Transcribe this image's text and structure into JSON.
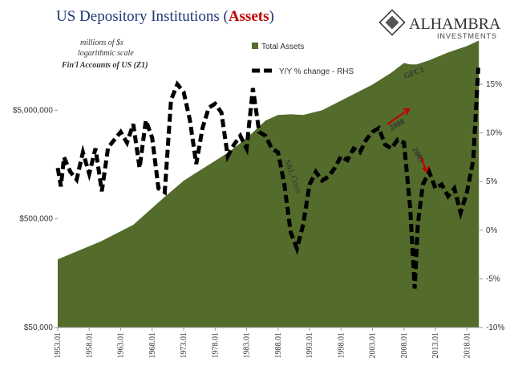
{
  "chart_data": {
    "type": "area-line",
    "title_parts": [
      "US Depository Institutions (",
      "Assets",
      ")"
    ],
    "title_colors": [
      "#1f3676",
      "#c00000",
      "#1f3676"
    ],
    "annotations": [
      {
        "text": "millions of $s",
        "color": "#000000"
      },
      {
        "text": "logarithmic scale",
        "color": "#000000"
      },
      {
        "text": "Fin'l Accounts of US (Z1)",
        "color": "#c00000"
      },
      {
        "text": "GFC1",
        "color": "#c00000"
      },
      {
        "text": "S&L Crisis",
        "color": "#c00000"
      },
      {
        "text": "2008",
        "color": "#c00000"
      },
      {
        "text": "2009",
        "color": "#c00000"
      }
    ],
    "logo": {
      "name": "ALHAMBRA",
      "sub": "INVESTMENTS"
    },
    "xlim": [
      1953,
      2020
    ],
    "xticks": [
      {
        "value": 1953,
        "label": "1953.01"
      },
      {
        "value": 1958,
        "label": "1958.01"
      },
      {
        "value": 1963,
        "label": "1963.01"
      },
      {
        "value": 1968,
        "label": "1968.01"
      },
      {
        "value": 1973,
        "label": "1973.01"
      },
      {
        "value": 1978,
        "label": "1978.01"
      },
      {
        "value": 1983,
        "label": "1983.01"
      },
      {
        "value": 1988,
        "label": "1988.01"
      },
      {
        "value": 1993,
        "label": "1993.01"
      },
      {
        "value": 1998,
        "label": "1998.01"
      },
      {
        "value": 2003,
        "label": "2003.01"
      },
      {
        "value": 2008,
        "label": "2008.01"
      },
      {
        "value": 2013,
        "label": "2013.01"
      },
      {
        "value": 2018,
        "label": "2018.01"
      }
    ],
    "ylog": true,
    "ylim": [
      50000,
      50000000
    ],
    "yticks": [
      {
        "value": 50000,
        "label": "$50,000"
      },
      {
        "value": 500000,
        "label": "$500,000"
      },
      {
        "value": 5000000,
        "label": "$5,000,000"
      }
    ],
    "y2lim": [
      -10,
      23.5
    ],
    "y2ticks": [
      {
        "value": -10,
        "label": "-10%"
      },
      {
        "value": -5,
        "label": "-5%"
      },
      {
        "value": 0,
        "label": "0%"
      },
      {
        "value": 5,
        "label": "5%"
      },
      {
        "value": 10,
        "label": "10%"
      },
      {
        "value": 15,
        "label": "15%"
      }
    ],
    "series": [
      {
        "name": "Total Assets",
        "kind": "area",
        "color": "#536b2b",
        "x": [
          1953,
          1960,
          1965,
          1970,
          1973,
          1975,
          1978,
          1980,
          1983,
          1986,
          1988,
          1990,
          1992,
          1995,
          1998,
          2000,
          2003,
          2006,
          2008,
          2009,
          2010,
          2012,
          2015,
          2018,
          2019.9
        ],
        "values": [
          212000,
          313000,
          440000,
          798000,
          1120000,
          1330000,
          1710000,
          2030000,
          2760000,
          4010000,
          4520000,
          4590000,
          4520000,
          5000000,
          6130000,
          7020000,
          8610000,
          11100000,
          13600000,
          13200000,
          13200000,
          14400000,
          17000000,
          19500000,
          21900000
        ]
      },
      {
        "name": "Y/Y % change - RHS",
        "kind": "line",
        "axis": "y2",
        "color": "#000000",
        "x": [
          1953,
          1953.5,
          1954,
          1955,
          1956,
          1957,
          1958,
          1959,
          1960,
          1961,
          1962,
          1963,
          1964,
          1965,
          1966,
          1967,
          1968,
          1969,
          1970,
          1971,
          1972,
          1973,
          1974,
          1975,
          1976,
          1977,
          1978,
          1979,
          1980,
          1981,
          1982,
          1983,
          1984,
          1985,
          1986,
          1987,
          1988,
          1989,
          1990,
          1991,
          1992,
          1993,
          1994,
          1995,
          1996,
          1997,
          1998,
          1999,
          2000,
          2001,
          2002,
          2003,
          2004,
          2005,
          2006,
          2007,
          2008,
          2009,
          2009.7,
          2010.2,
          2011,
          2012,
          2013,
          2014,
          2015,
          2016,
          2017,
          2018,
          2019,
          2019.8
        ],
        "values": [
          6.4,
          4.5,
          7.5,
          6.0,
          5.2,
          8.0,
          5.8,
          8.4,
          4.0,
          8.5,
          9.3,
          10.1,
          9.0,
          10.9,
          6.4,
          11.3,
          9.5,
          4.3,
          3.9,
          13.4,
          15.0,
          14.2,
          11.3,
          6.8,
          10.5,
          12.6,
          13.0,
          12.1,
          7.6,
          8.8,
          9.7,
          8.4,
          14.6,
          10.1,
          9.7,
          8.4,
          8.0,
          4.7,
          -0.2,
          -1.9,
          0.6,
          4.7,
          6.0,
          5.1,
          5.5,
          6.4,
          7.6,
          7.2,
          8.4,
          8.0,
          9.3,
          10.1,
          10.5,
          8.8,
          8.4,
          9.3,
          9.0,
          2.2,
          -6.0,
          0.6,
          4.7,
          6.0,
          4.3,
          4.7,
          3.5,
          4.3,
          1.8,
          3.9,
          7.2,
          16.7
        ]
      }
    ]
  }
}
